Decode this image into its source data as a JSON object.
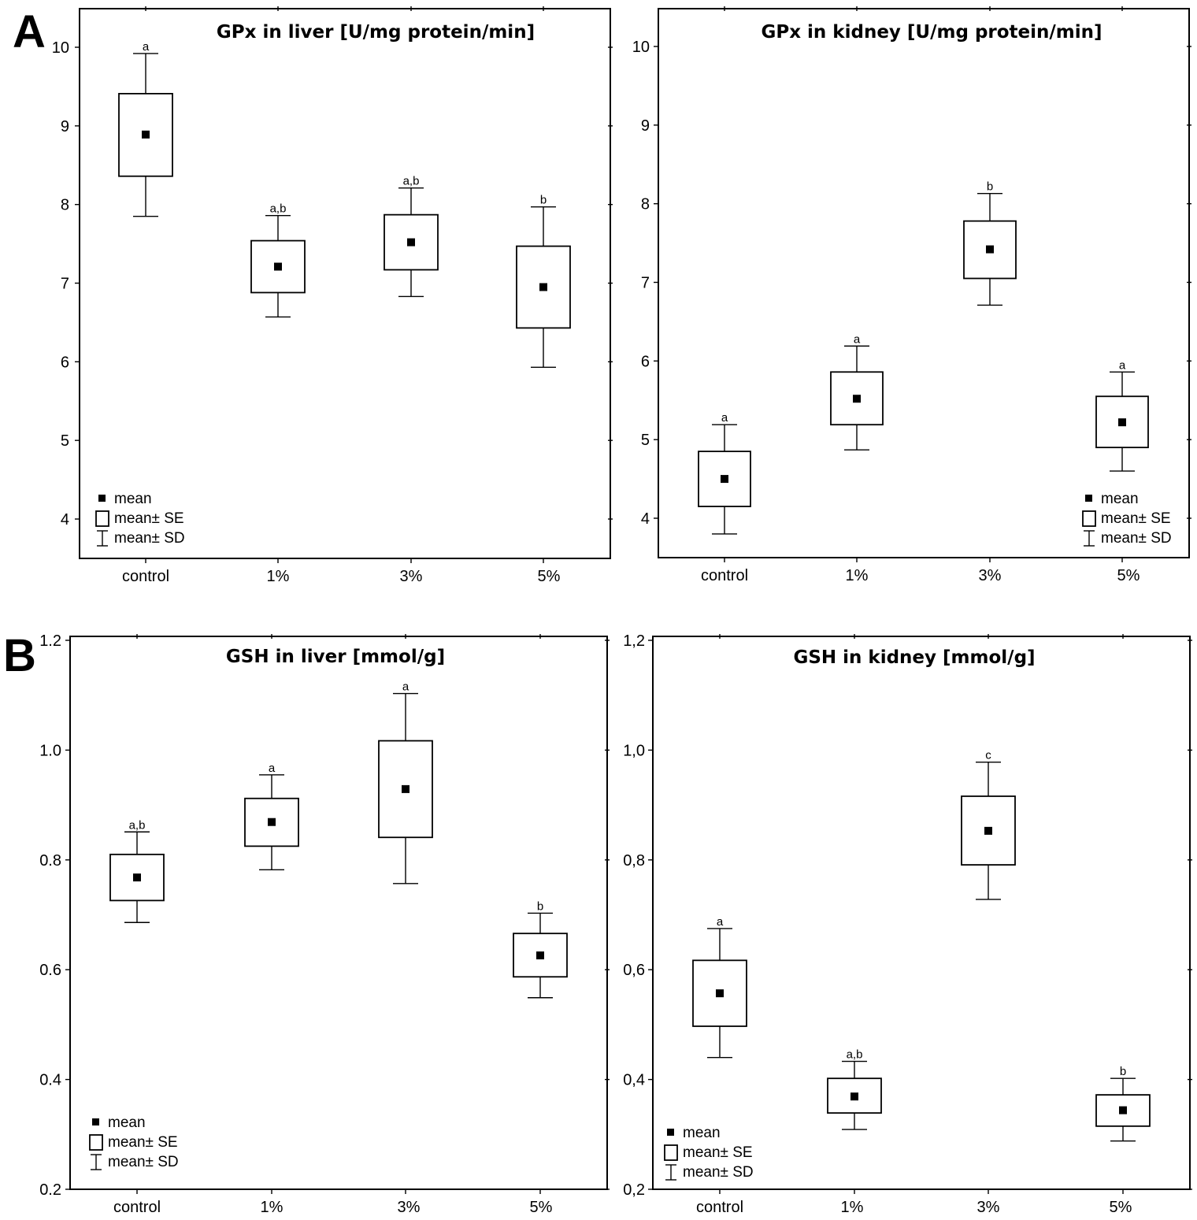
{
  "panel_labels": [
    "A",
    "B"
  ],
  "legend": {
    "mean": "mean",
    "se": "mean± SE",
    "sd": "mean± SD"
  },
  "chart_data": [
    {
      "type": "box",
      "title": "GPx in liver [U/mg protein/min]",
      "panel": "A",
      "categories": [
        "control",
        "1%",
        "3%",
        "5%"
      ],
      "y_ticks": [
        "4",
        "5",
        "6",
        "7",
        "8",
        "9",
        "10"
      ],
      "ylim": [
        3.5,
        10.5
      ],
      "legend_position": "bottom-left",
      "groups": [
        {
          "category": "control",
          "mean": 8.89,
          "se_low": 8.36,
          "se_high": 9.41,
          "sd_low": 7.85,
          "sd_high": 9.92,
          "label": "a"
        },
        {
          "category": "1%",
          "mean": 7.21,
          "se_low": 6.88,
          "se_high": 7.54,
          "sd_low": 6.57,
          "sd_high": 7.86,
          "label": "a,b"
        },
        {
          "category": "3%",
          "mean": 7.52,
          "se_low": 7.17,
          "se_high": 7.87,
          "sd_low": 6.83,
          "sd_high": 8.21,
          "label": "a,b"
        },
        {
          "category": "5%",
          "mean": 6.95,
          "se_low": 6.43,
          "se_high": 7.47,
          "sd_low": 5.93,
          "sd_high": 7.97,
          "label": "b"
        }
      ]
    },
    {
      "type": "box",
      "title": "GPx in kidney [U/mg protein/min]",
      "panel": "A",
      "categories": [
        "control",
        "1%",
        "3%",
        "5%"
      ],
      "y_ticks": [
        "4",
        "5",
        "6",
        "7",
        "8",
        "9",
        "10"
      ],
      "ylim": [
        3.5,
        10.5
      ],
      "legend_position": "bottom-right",
      "groups": [
        {
          "category": "control",
          "mean": 4.5,
          "se_low": 4.15,
          "se_high": 4.85,
          "sd_low": 3.8,
          "sd_high": 5.19,
          "label": "a"
        },
        {
          "category": "1%",
          "mean": 5.52,
          "se_low": 5.19,
          "se_high": 5.86,
          "sd_low": 4.87,
          "sd_high": 6.19,
          "label": "a"
        },
        {
          "category": "3%",
          "mean": 7.42,
          "se_low": 7.05,
          "se_high": 7.78,
          "sd_low": 6.71,
          "sd_high": 8.13,
          "label": "b"
        },
        {
          "category": "5%",
          "mean": 5.22,
          "se_low": 4.9,
          "se_high": 5.55,
          "sd_low": 4.6,
          "sd_high": 5.86,
          "label": "a"
        }
      ]
    },
    {
      "type": "box",
      "title": "GSH in liver [mmol/g]",
      "panel": "B",
      "categories": [
        "control",
        "1%",
        "3%",
        "5%"
      ],
      "y_ticks": [
        "0.2",
        "0.4",
        "0.6",
        "0.8",
        "1.0",
        "1.2"
      ],
      "ylim": [
        0.2,
        1.2
      ],
      "legend_position": "bottom-left",
      "groups": [
        {
          "category": "control",
          "mean": 0.768,
          "se_low": 0.726,
          "se_high": 0.81,
          "sd_low": 0.686,
          "sd_high": 0.851,
          "label": "a,b"
        },
        {
          "category": "1%",
          "mean": 0.869,
          "se_low": 0.825,
          "se_high": 0.912,
          "sd_low": 0.782,
          "sd_high": 0.955,
          "label": "a"
        },
        {
          "category": "3%",
          "mean": 0.929,
          "se_low": 0.841,
          "se_high": 1.017,
          "sd_low": 0.757,
          "sd_high": 1.103,
          "label": "a"
        },
        {
          "category": "5%",
          "mean": 0.626,
          "se_low": 0.587,
          "se_high": 0.666,
          "sd_low": 0.549,
          "sd_high": 0.703,
          "label": "b"
        }
      ]
    },
    {
      "type": "box",
      "title": "GSH in kidney [mmol/g]",
      "panel": "B",
      "categories": [
        "control",
        "1%",
        "3%",
        "5%"
      ],
      "y_ticks": [
        "0,2",
        "0,4",
        "0,6",
        "0,8",
        "1,0",
        "1,2"
      ],
      "ylim": [
        0.2,
        1.2
      ],
      "legend_position": "bottom-left",
      "groups": [
        {
          "category": "control",
          "mean": 0.557,
          "se_low": 0.497,
          "se_high": 0.617,
          "sd_low": 0.44,
          "sd_high": 0.675,
          "label": "a"
        },
        {
          "category": "1%",
          "mean": 0.369,
          "se_low": 0.339,
          "se_high": 0.402,
          "sd_low": 0.309,
          "sd_high": 0.433,
          "label": "a,b"
        },
        {
          "category": "3%",
          "mean": 0.853,
          "se_low": 0.791,
          "se_high": 0.916,
          "sd_low": 0.728,
          "sd_high": 0.978,
          "label": "c"
        },
        {
          "category": "5%",
          "mean": 0.344,
          "se_low": 0.315,
          "se_high": 0.372,
          "sd_low": 0.288,
          "sd_high": 0.402,
          "label": "b"
        }
      ]
    }
  ]
}
